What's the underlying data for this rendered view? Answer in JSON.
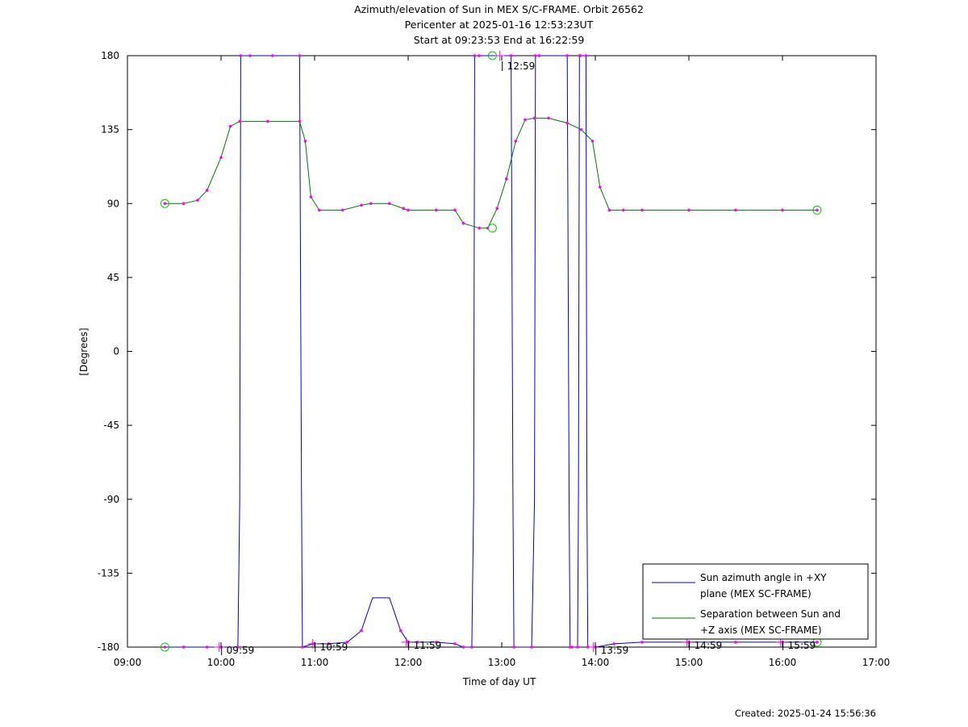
{
  "chart_data": {
    "type": "line",
    "title": "Azimuth/elevation of Sun in MEX S/C-FRAME.  Orbit 26562",
    "subtitle_lines": [
      "Pericenter at 2025-01-16 12:53:23UT",
      "Start at 09:23:53 End at 16:22:59"
    ],
    "xlabel": "Time of day UT",
    "ylabel": "[Degrees]",
    "x_unit": "hours of day UT",
    "xlim": [
      9,
      17
    ],
    "ylim": [
      -180,
      180
    ],
    "x_ticks": [
      9,
      10,
      11,
      12,
      13,
      14,
      15,
      16,
      17
    ],
    "x_tick_labels": [
      "09:00",
      "10:00",
      "11:00",
      "12:00",
      "13:00",
      "14:00",
      "15:00",
      "16:00",
      "17:00"
    ],
    "y_ticks": [
      -180,
      -135,
      -90,
      -45,
      0,
      45,
      90,
      135,
      180
    ],
    "y_tick_labels": [
      "-180",
      "-135",
      "-90",
      "-45",
      "0",
      "45",
      "90",
      "135",
      "180"
    ],
    "grid": false,
    "legend_position": "bottom-right",
    "colors": {
      "azimuth": "#0000cc",
      "separation": "#007700",
      "markers": "#ff00ff",
      "endpoints": "#00cc00"
    },
    "hour_markers": [
      {
        "x": 9.98,
        "y": -180,
        "label": "09:59"
      },
      {
        "x": 10.98,
        "y": -178,
        "label": "10:59"
      },
      {
        "x": 11.98,
        "y": -177,
        "label": "11:59"
      },
      {
        "x": 12.98,
        "y": 180,
        "label": "12:59"
      },
      {
        "x": 13.98,
        "y": -180,
        "label": "13:59"
      },
      {
        "x": 14.98,
        "y": -177,
        "label": "14:59"
      },
      {
        "x": 15.98,
        "y": -177,
        "label": "15:59"
      }
    ],
    "series": [
      {
        "name": "Sun azimuth angle in +XY plane (MEX SC-FRAME)",
        "x": [
          9.4,
          9.6,
          9.85,
          10.0,
          10.18,
          10.2,
          10.21,
          10.31,
          10.55,
          10.84,
          10.86,
          10.87,
          10.98,
          11.15,
          11.35,
          11.5,
          11.62,
          11.7,
          11.8,
          11.92,
          12.0,
          12.1,
          12.3,
          12.5,
          12.59,
          12.68,
          12.7,
          12.71,
          12.76,
          13.1,
          13.12,
          13.13,
          13.32,
          13.35,
          13.36,
          13.4,
          13.7,
          13.72,
          13.73,
          13.75,
          13.81,
          13.82,
          13.83,
          13.84,
          13.9,
          13.91,
          13.92,
          14.0,
          14.2,
          14.5,
          15.0,
          15.5,
          16.0,
          16.37
        ],
        "y": [
          -180,
          -180,
          -180,
          -180,
          -180,
          -90,
          180,
          180,
          180,
          180,
          -90,
          -180,
          -178,
          -178,
          -177,
          -170,
          -150,
          -150,
          -150,
          -170,
          -177,
          -177,
          -177,
          -178,
          -180,
          -180,
          -90,
          180,
          180,
          180,
          -90,
          -180,
          -180,
          -90,
          180,
          180,
          180,
          -90,
          -180,
          -180,
          -180,
          -90,
          180,
          180,
          180,
          -90,
          -180,
          -180,
          -178,
          -177,
          -177,
          -177,
          -177,
          -177
        ]
      },
      {
        "name": "Separation between Sun and +Z axis (MEX SC-FRAME)",
        "x": [
          9.4,
          9.6,
          9.75,
          9.85,
          10.0,
          10.1,
          10.2,
          10.5,
          10.84,
          10.9,
          10.96,
          11.05,
          11.3,
          11.5,
          11.6,
          11.8,
          11.95,
          12.0,
          12.3,
          12.5,
          12.59,
          12.76,
          12.85,
          12.95,
          13.05,
          13.15,
          13.25,
          13.35,
          13.5,
          13.7,
          13.85,
          13.97,
          14.05,
          14.15,
          14.3,
          14.5,
          15.0,
          15.5,
          16.0,
          16.37
        ],
        "y": [
          90,
          90,
          92,
          98,
          118,
          137,
          140,
          140,
          140,
          128,
          94,
          86,
          86,
          89,
          90,
          90,
          87,
          86,
          86,
          86,
          78,
          75,
          75,
          87,
          105,
          128,
          141,
          142,
          142,
          139,
          135,
          128,
          100,
          86,
          86,
          86,
          86,
          86,
          86,
          86
        ]
      }
    ]
  },
  "legend": {
    "azimuth_line1": "Sun azimuth angle in +XY",
    "azimuth_line2": "plane (MEX SC-FRAME)",
    "separation_line1": "Separation between Sun and",
    "separation_line2": "+Z axis (MEX SC-FRAME)"
  },
  "footer": {
    "created": "Created: 2025-01-24 15:56:36"
  }
}
